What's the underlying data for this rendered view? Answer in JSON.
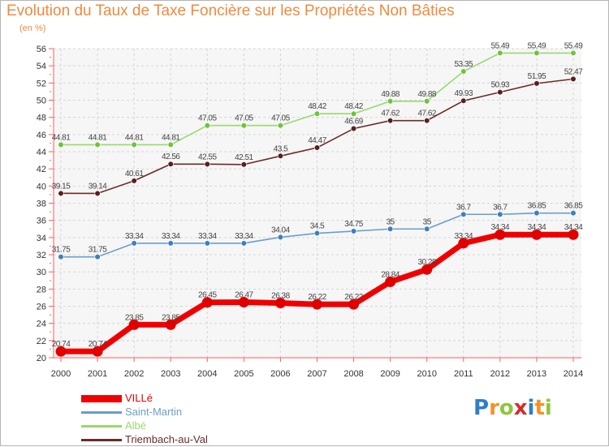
{
  "title": "Evolution du Taux de Taxe Foncière sur les Propriétés Non Bâties",
  "unit_label": "(en %)",
  "logo": {
    "letters": [
      "P",
      "r",
      "o",
      "x",
      "i",
      "t",
      "i"
    ],
    "colors": [
      "#2f7fc6",
      "#f29327",
      "#8cc63f",
      "#d62b2b",
      "#2f7fc6",
      "#f29327",
      "#8cc63f"
    ]
  },
  "chart_data": {
    "type": "line",
    "x": [
      "2000",
      "2001",
      "2002",
      "2003",
      "2004",
      "2005",
      "2006",
      "2007",
      "2008",
      "2009",
      "2010",
      "2011",
      "2012",
      "2013",
      "2014"
    ],
    "ylim": [
      20,
      56
    ],
    "yticks": [
      20,
      22,
      24,
      26,
      28,
      30,
      32,
      34,
      36,
      38,
      40,
      42,
      44,
      46,
      48,
      50,
      52,
      54,
      56
    ],
    "grid": true,
    "legend": "bottom-left",
    "series": [
      {
        "name": "VILLé",
        "color": "#f00000",
        "marker": "#e00000",
        "values": [
          20.74,
          20.74,
          23.85,
          23.85,
          26.45,
          26.47,
          26.38,
          26.22,
          26.22,
          28.84,
          30.28,
          33.34,
          34.34,
          34.34,
          34.34
        ],
        "labels": [
          "20.74",
          "20.74",
          "23.85",
          "23.85",
          "26.45",
          "26.47",
          "26.38",
          "26.22",
          "26.22",
          "28.84",
          "30.28",
          "33.34",
          "34.34",
          "34.34",
          "34.34"
        ]
      },
      {
        "name": "Saint-Martin",
        "color": "#6a9ec8",
        "marker": "#3d7fc0",
        "values": [
          31.75,
          31.75,
          33.34,
          33.34,
          33.34,
          33.34,
          34.04,
          34.5,
          34.75,
          35,
          35,
          36.7,
          36.7,
          36.85,
          36.85
        ],
        "labels": [
          "31.75",
          "31.75",
          "33.34",
          "33.34",
          "33.34",
          "33.34",
          "34.04",
          "34.5",
          "34.75",
          "35",
          "35",
          "36.7",
          "36.7",
          "36.85",
          "36.85"
        ]
      },
      {
        "name": "Albé",
        "color": "#9ad86e",
        "marker": "#6fc23c",
        "values": [
          44.81,
          44.81,
          44.81,
          44.81,
          47.05,
          47.05,
          47.05,
          48.42,
          48.42,
          49.88,
          49.88,
          53.35,
          55.49,
          55.49,
          55.49
        ],
        "labels": [
          "44.81",
          "44.81",
          "44.81",
          "44.81",
          "47.05",
          "47.05",
          "47.05",
          "48.42",
          "48.42",
          "49.88",
          "49.88",
          "53.35",
          "55.49",
          "55.49",
          "55.49"
        ]
      },
      {
        "name": "Triembach-au-Val",
        "color": "#6b2a2a",
        "marker": "#5a1e1e",
        "values": [
          39.15,
          39.14,
          40.61,
          42.56,
          42.55,
          42.51,
          43.5,
          44.47,
          46.69,
          47.62,
          47.62,
          49.93,
          50.93,
          51.95,
          52.47
        ],
        "labels": [
          "39.15",
          "39.14",
          "40.61",
          "42.56",
          "42.55",
          "42.51",
          "43.5",
          "44.47",
          "46.69",
          "47.62",
          "47.62",
          "49.93",
          "50.93",
          "51.95",
          "52.47"
        ]
      }
    ]
  }
}
